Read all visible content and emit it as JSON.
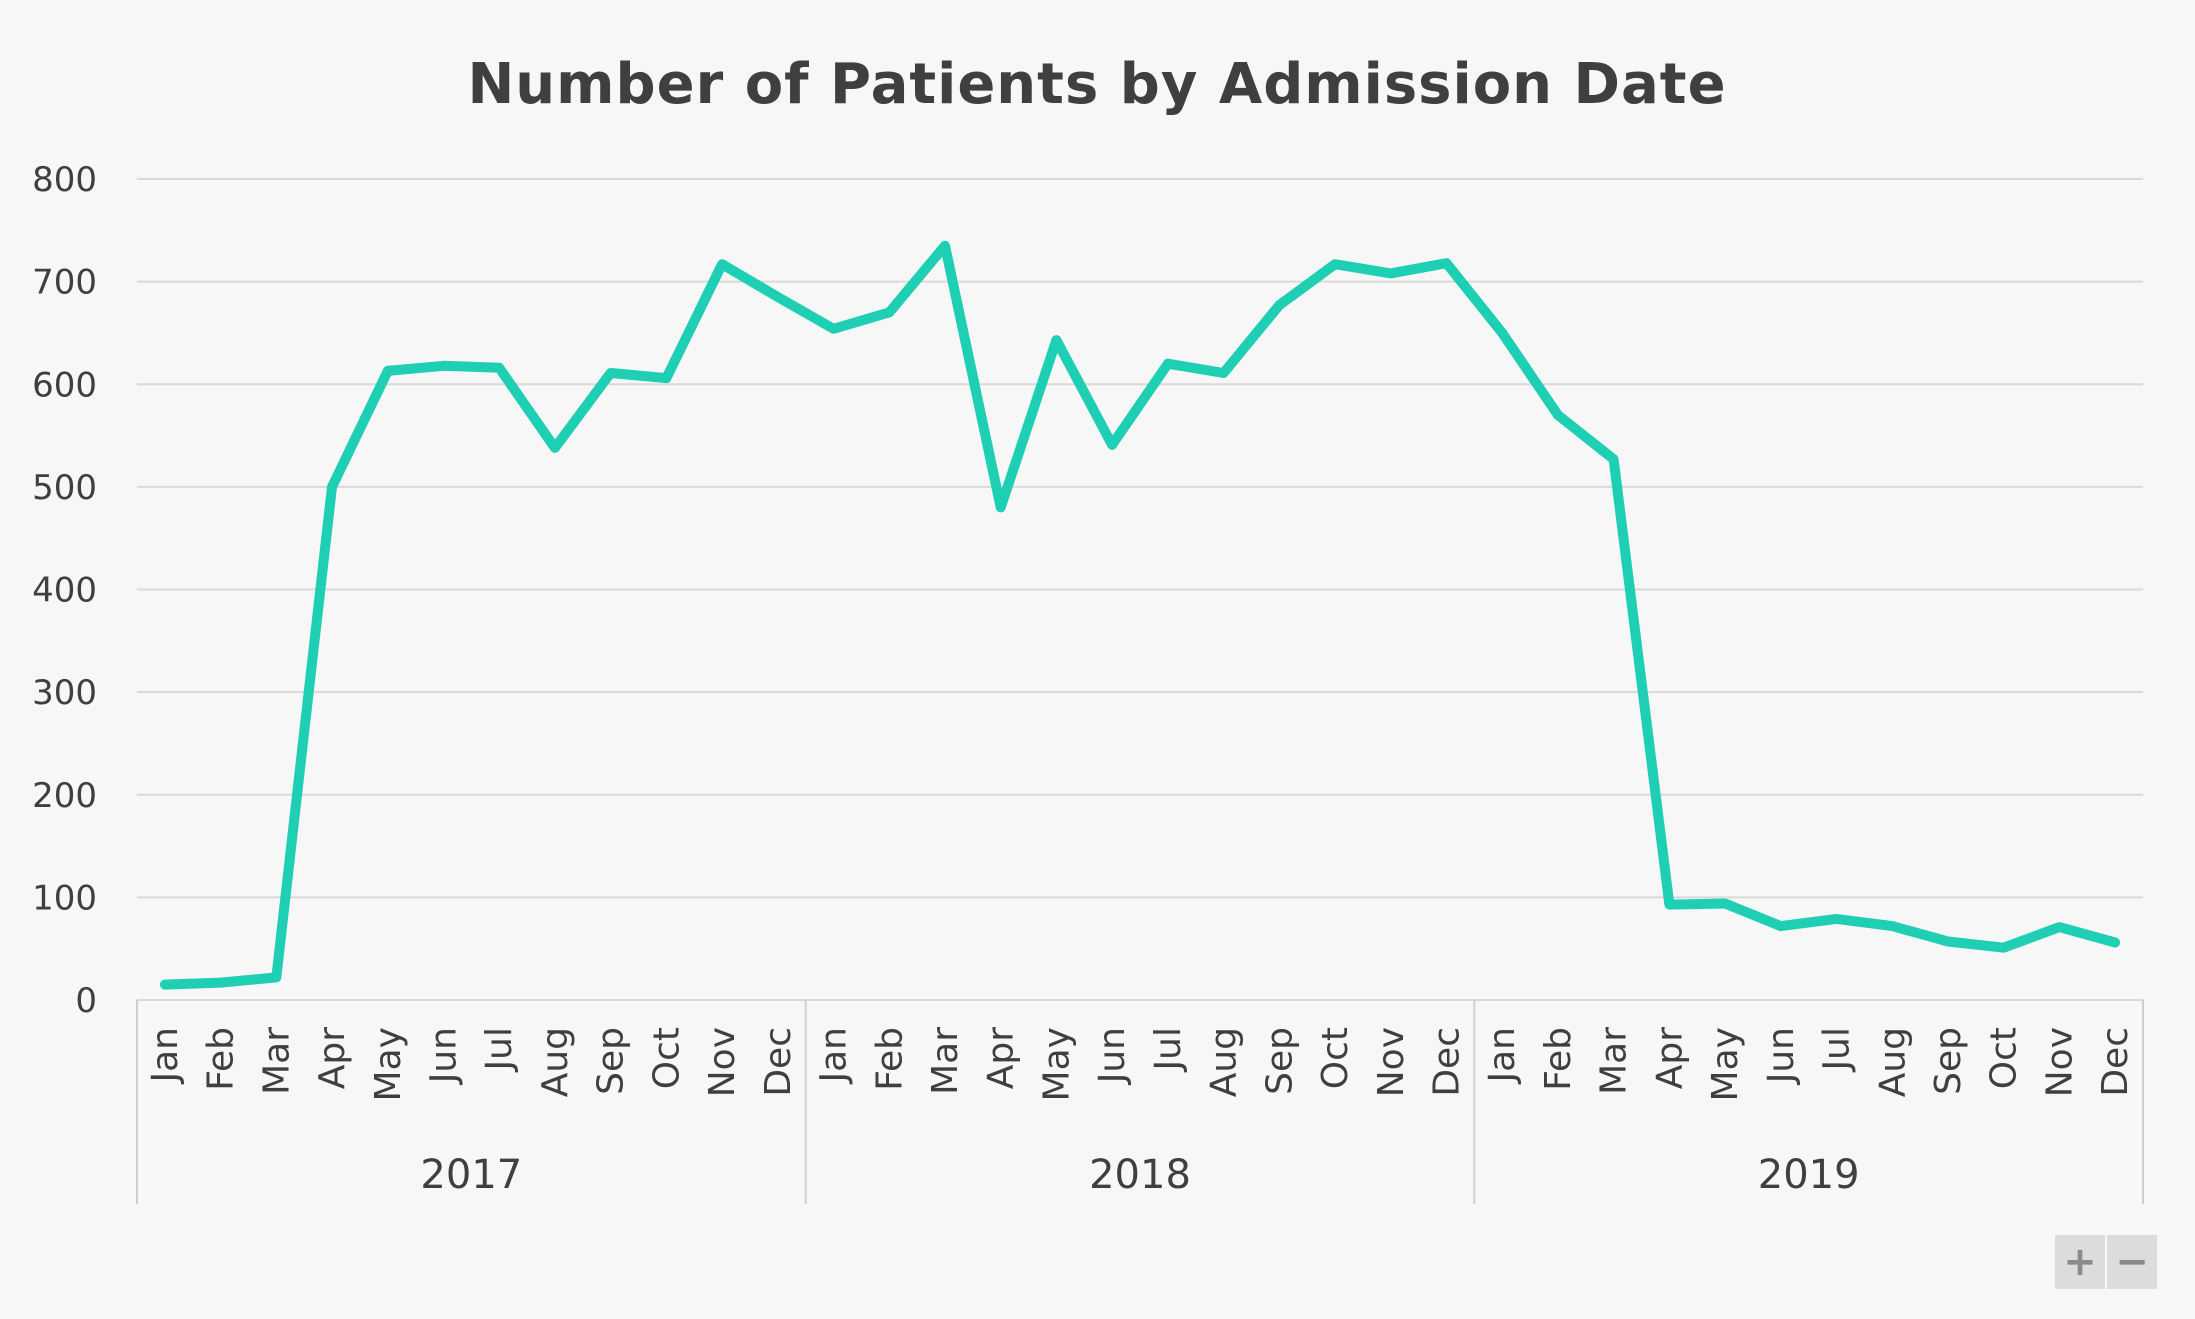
{
  "chart_data": {
    "type": "line",
    "title": "Number of Patients by Admission Date",
    "xlabel": "",
    "ylabel": "",
    "ylim": [
      0,
      800
    ],
    "yticks": [
      0,
      100,
      200,
      300,
      400,
      500,
      600,
      700,
      800
    ],
    "grid": true,
    "legend": "none",
    "groups": [
      {
        "label": "2017",
        "months": [
          "Jan",
          "Feb",
          "Mar",
          "Apr",
          "May",
          "Jun",
          "Jul",
          "Aug",
          "Sep",
          "Oct",
          "Nov",
          "Dec"
        ]
      },
      {
        "label": "2018",
        "months": [
          "Jan",
          "Feb",
          "Mar",
          "Apr",
          "May",
          "Jun",
          "Jul",
          "Aug",
          "Sep",
          "Oct",
          "Nov",
          "Dec"
        ]
      },
      {
        "label": "2019",
        "months": [
          "Jan",
          "Feb",
          "Mar",
          "Apr",
          "May",
          "Jun",
          "Jul",
          "Aug",
          "Sep",
          "Oct",
          "Nov",
          "Dec"
        ]
      }
    ],
    "series": [
      {
        "color": "#1fcfb3",
        "values": [
          15,
          17,
          22,
          500,
          613,
          618,
          616,
          538,
          611,
          606,
          717,
          685,
          654,
          670,
          735,
          480,
          643,
          541,
          620,
          611,
          677,
          717,
          708,
          718,
          650,
          570,
          527,
          93,
          94,
          72,
          79,
          72,
          57,
          51,
          71,
          56
        ]
      }
    ]
  },
  "zoom": {
    "in_label": "+",
    "out_label": "−"
  }
}
